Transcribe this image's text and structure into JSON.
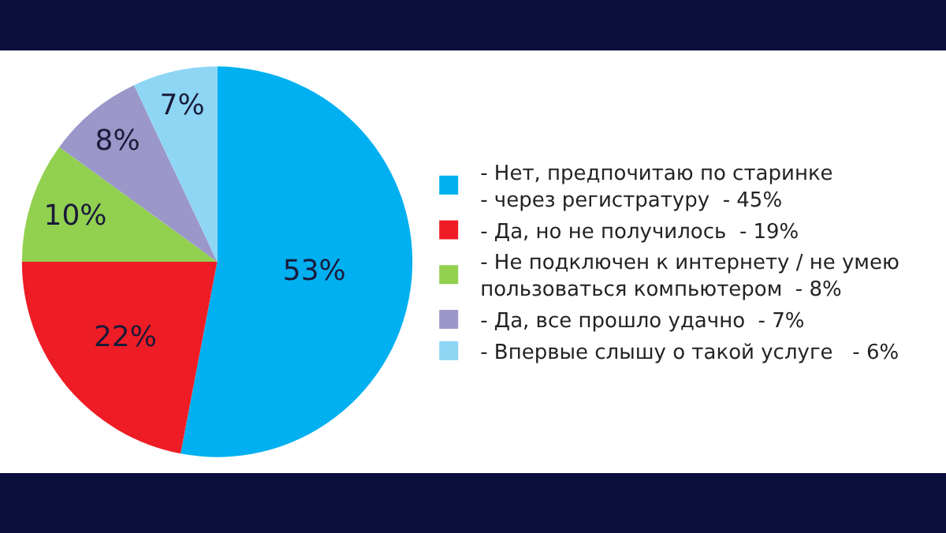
{
  "chart_data": {
    "type": "pie",
    "categories": [
      "- Нет, предпочитаю по старинке\n- через регистратуру  - 45%",
      "- Да, но не получилось  - 19%",
      "- Не подключен к интернету / не умею\nпользоваться компьютером  - 8%",
      "- Да, все прошло удачно  - 7%",
      "- Впервые слышу о такой услуге   - 6%"
    ],
    "values": [
      53,
      22,
      10,
      8,
      7
    ],
    "value_labels": [
      "53%",
      "22%",
      "10%",
      "8%",
      "7%"
    ],
    "colors": [
      "#00b0f0",
      "#ee1c25",
      "#92d050",
      "#9b97c8",
      "#8fd6f5"
    ],
    "legend": "right"
  }
}
